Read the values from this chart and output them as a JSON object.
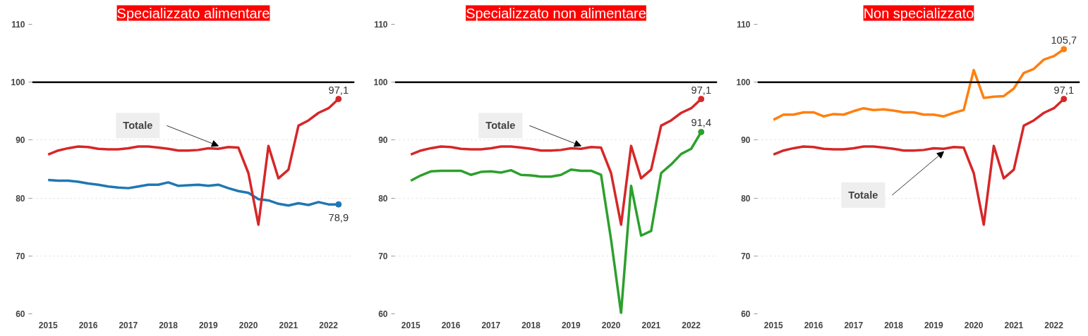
{
  "chart_data": [
    {
      "type": "line",
      "title": "Specializzato alimentare",
      "x": [
        2015,
        2015.25,
        2015.5,
        2015.75,
        2016,
        2016.25,
        2016.5,
        2016.75,
        2017,
        2017.25,
        2017.5,
        2017.75,
        2018,
        2018.25,
        2018.5,
        2018.75,
        2019,
        2019.25,
        2019.5,
        2019.75,
        2020,
        2020.25,
        2020.5,
        2020.75,
        2021,
        2021.25,
        2021.5,
        2021.75,
        2022,
        2022.25
      ],
      "series": [
        {
          "color": "#1f77b4",
          "values": [
            83.1,
            83.0,
            83.0,
            82.8,
            82.5,
            82.3,
            82.0,
            81.8,
            81.7,
            82.0,
            82.3,
            82.3,
            82.7,
            82.1,
            82.2,
            82.3,
            82.1,
            82.3,
            81.7,
            81.2,
            80.9,
            79.8,
            79.6,
            79.0,
            78.7,
            79.1,
            78.8,
            79.3,
            78.9,
            78.9
          ],
          "value_labels": [
            null,
            null,
            null,
            null,
            null,
            null,
            null,
            null,
            null,
            null,
            null,
            null,
            null,
            null,
            null,
            null,
            null,
            null,
            null,
            null,
            null,
            null,
            null,
            null,
            null,
            null,
            null,
            null,
            null,
            "78,9"
          ]
        },
        {
          "name": "Totale",
          "color": "#d62728",
          "values": [
            87.5,
            88.2,
            88.6,
            88.9,
            88.8,
            88.5,
            88.4,
            88.4,
            88.6,
            88.9,
            88.9,
            88.7,
            88.5,
            88.2,
            88.2,
            88.3,
            88.6,
            88.5,
            88.8,
            88.7,
            84.3,
            75.4,
            89.0,
            83.4,
            84.9,
            92.5,
            93.4,
            94.7,
            95.5,
            97.1
          ],
          "value_labels": [
            null,
            null,
            null,
            null,
            null,
            null,
            null,
            null,
            null,
            null,
            null,
            null,
            null,
            null,
            null,
            null,
            null,
            null,
            null,
            null,
            null,
            null,
            null,
            null,
            null,
            null,
            null,
            null,
            null,
            "97,1"
          ]
        }
      ],
      "ref_lines": [
        {
          "axis": "y",
          "value": 100,
          "color": "#000000"
        }
      ],
      "xlim": [
        2014.6,
        2022.65
      ],
      "ylim": [
        60,
        110
      ],
      "xticks": [
        2015,
        2016,
        2017,
        2018,
        2019,
        2020,
        2021,
        2022
      ],
      "yticks": [
        60,
        70,
        80,
        90,
        100,
        110
      ],
      "grid": "y"
    },
    {
      "type": "line",
      "title": "Specializzato non alimentare",
      "x": [
        2015,
        2015.25,
        2015.5,
        2015.75,
        2016,
        2016.25,
        2016.5,
        2016.75,
        2017,
        2017.25,
        2017.5,
        2017.75,
        2018,
        2018.25,
        2018.5,
        2018.75,
        2019,
        2019.25,
        2019.5,
        2019.75,
        2020,
        2020.25,
        2020.5,
        2020.75,
        2021,
        2021.25,
        2021.5,
        2021.75,
        2022,
        2022.25
      ],
      "series": [
        {
          "color": "#2ca02c",
          "values": [
            83.0,
            83.9,
            84.6,
            84.7,
            84.7,
            84.7,
            84.0,
            84.5,
            84.6,
            84.4,
            84.8,
            84.0,
            83.9,
            83.7,
            83.7,
            84.0,
            84.9,
            84.7,
            84.7,
            84.0,
            72.8,
            60.1,
            82.1,
            73.5,
            74.3,
            84.3,
            85.8,
            87.6,
            88.5,
            91.4
          ],
          "value_labels": [
            null,
            null,
            null,
            null,
            null,
            null,
            null,
            null,
            null,
            null,
            null,
            null,
            null,
            null,
            null,
            null,
            null,
            null,
            null,
            null,
            null,
            null,
            null,
            null,
            null,
            null,
            null,
            null,
            null,
            "91,4"
          ]
        },
        {
          "name": "Totale",
          "color": "#d62728",
          "values": [
            87.5,
            88.2,
            88.6,
            88.9,
            88.8,
            88.5,
            88.4,
            88.4,
            88.6,
            88.9,
            88.9,
            88.7,
            88.5,
            88.2,
            88.2,
            88.3,
            88.6,
            88.5,
            88.8,
            88.7,
            84.3,
            75.4,
            89.0,
            83.4,
            84.9,
            92.5,
            93.4,
            94.7,
            95.5,
            97.1
          ],
          "value_labels": [
            null,
            null,
            null,
            null,
            null,
            null,
            null,
            null,
            null,
            null,
            null,
            null,
            null,
            null,
            null,
            null,
            null,
            null,
            null,
            null,
            null,
            null,
            null,
            null,
            null,
            null,
            null,
            null,
            null,
            "97,1"
          ]
        }
      ],
      "ref_lines": [
        {
          "axis": "y",
          "value": 100,
          "color": "#000000"
        }
      ],
      "xlim": [
        2014.6,
        2022.65
      ],
      "ylim": [
        60,
        110
      ],
      "xticks": [
        2015,
        2016,
        2017,
        2018,
        2019,
        2020,
        2021,
        2022
      ],
      "yticks": [
        60,
        70,
        80,
        90,
        100,
        110
      ],
      "grid": "y"
    },
    {
      "type": "line",
      "title": "Non specializzato",
      "x": [
        2015,
        2015.25,
        2015.5,
        2015.75,
        2016,
        2016.25,
        2016.5,
        2016.75,
        2017,
        2017.25,
        2017.5,
        2017.75,
        2018,
        2018.25,
        2018.5,
        2018.75,
        2019,
        2019.25,
        2019.5,
        2019.75,
        2020,
        2020.25,
        2020.5,
        2020.75,
        2021,
        2021.25,
        2021.5,
        2021.75,
        2022,
        2022.25
      ],
      "series": [
        {
          "color": "#ff7f0e",
          "values": [
            93.5,
            94.4,
            94.4,
            94.8,
            94.8,
            94.1,
            94.5,
            94.4,
            95.0,
            95.5,
            95.2,
            95.3,
            95.1,
            94.8,
            94.8,
            94.4,
            94.4,
            94.1,
            94.7,
            95.2,
            102.1,
            97.3,
            97.5,
            97.6,
            98.9,
            101.6,
            102.3,
            103.9,
            104.5,
            105.7
          ],
          "value_labels": [
            null,
            null,
            null,
            null,
            null,
            null,
            null,
            null,
            null,
            null,
            null,
            null,
            null,
            null,
            null,
            null,
            null,
            null,
            null,
            null,
            null,
            null,
            null,
            null,
            null,
            null,
            null,
            null,
            null,
            "105,7"
          ]
        },
        {
          "name": "Totale",
          "color": "#d62728",
          "values": [
            87.5,
            88.2,
            88.6,
            88.9,
            88.8,
            88.5,
            88.4,
            88.4,
            88.6,
            88.9,
            88.9,
            88.7,
            88.5,
            88.2,
            88.2,
            88.3,
            88.6,
            88.5,
            88.8,
            88.7,
            84.3,
            75.4,
            89.0,
            83.4,
            84.9,
            92.5,
            93.4,
            94.7,
            95.5,
            97.1
          ],
          "value_labels": [
            null,
            null,
            null,
            null,
            null,
            null,
            null,
            null,
            null,
            null,
            null,
            null,
            null,
            null,
            null,
            null,
            null,
            null,
            null,
            null,
            null,
            null,
            null,
            null,
            null,
            null,
            null,
            null,
            null,
            "97,1"
          ]
        }
      ],
      "ref_lines": [
        {
          "axis": "y",
          "value": 100,
          "color": "#000000"
        }
      ],
      "xlim": [
        2014.6,
        2022.65
      ],
      "ylim": [
        60,
        110
      ],
      "xticks": [
        2015,
        2016,
        2017,
        2018,
        2019,
        2020,
        2021,
        2022
      ],
      "yticks": [
        60,
        70,
        80,
        90,
        100,
        110
      ],
      "grid": "y"
    }
  ]
}
